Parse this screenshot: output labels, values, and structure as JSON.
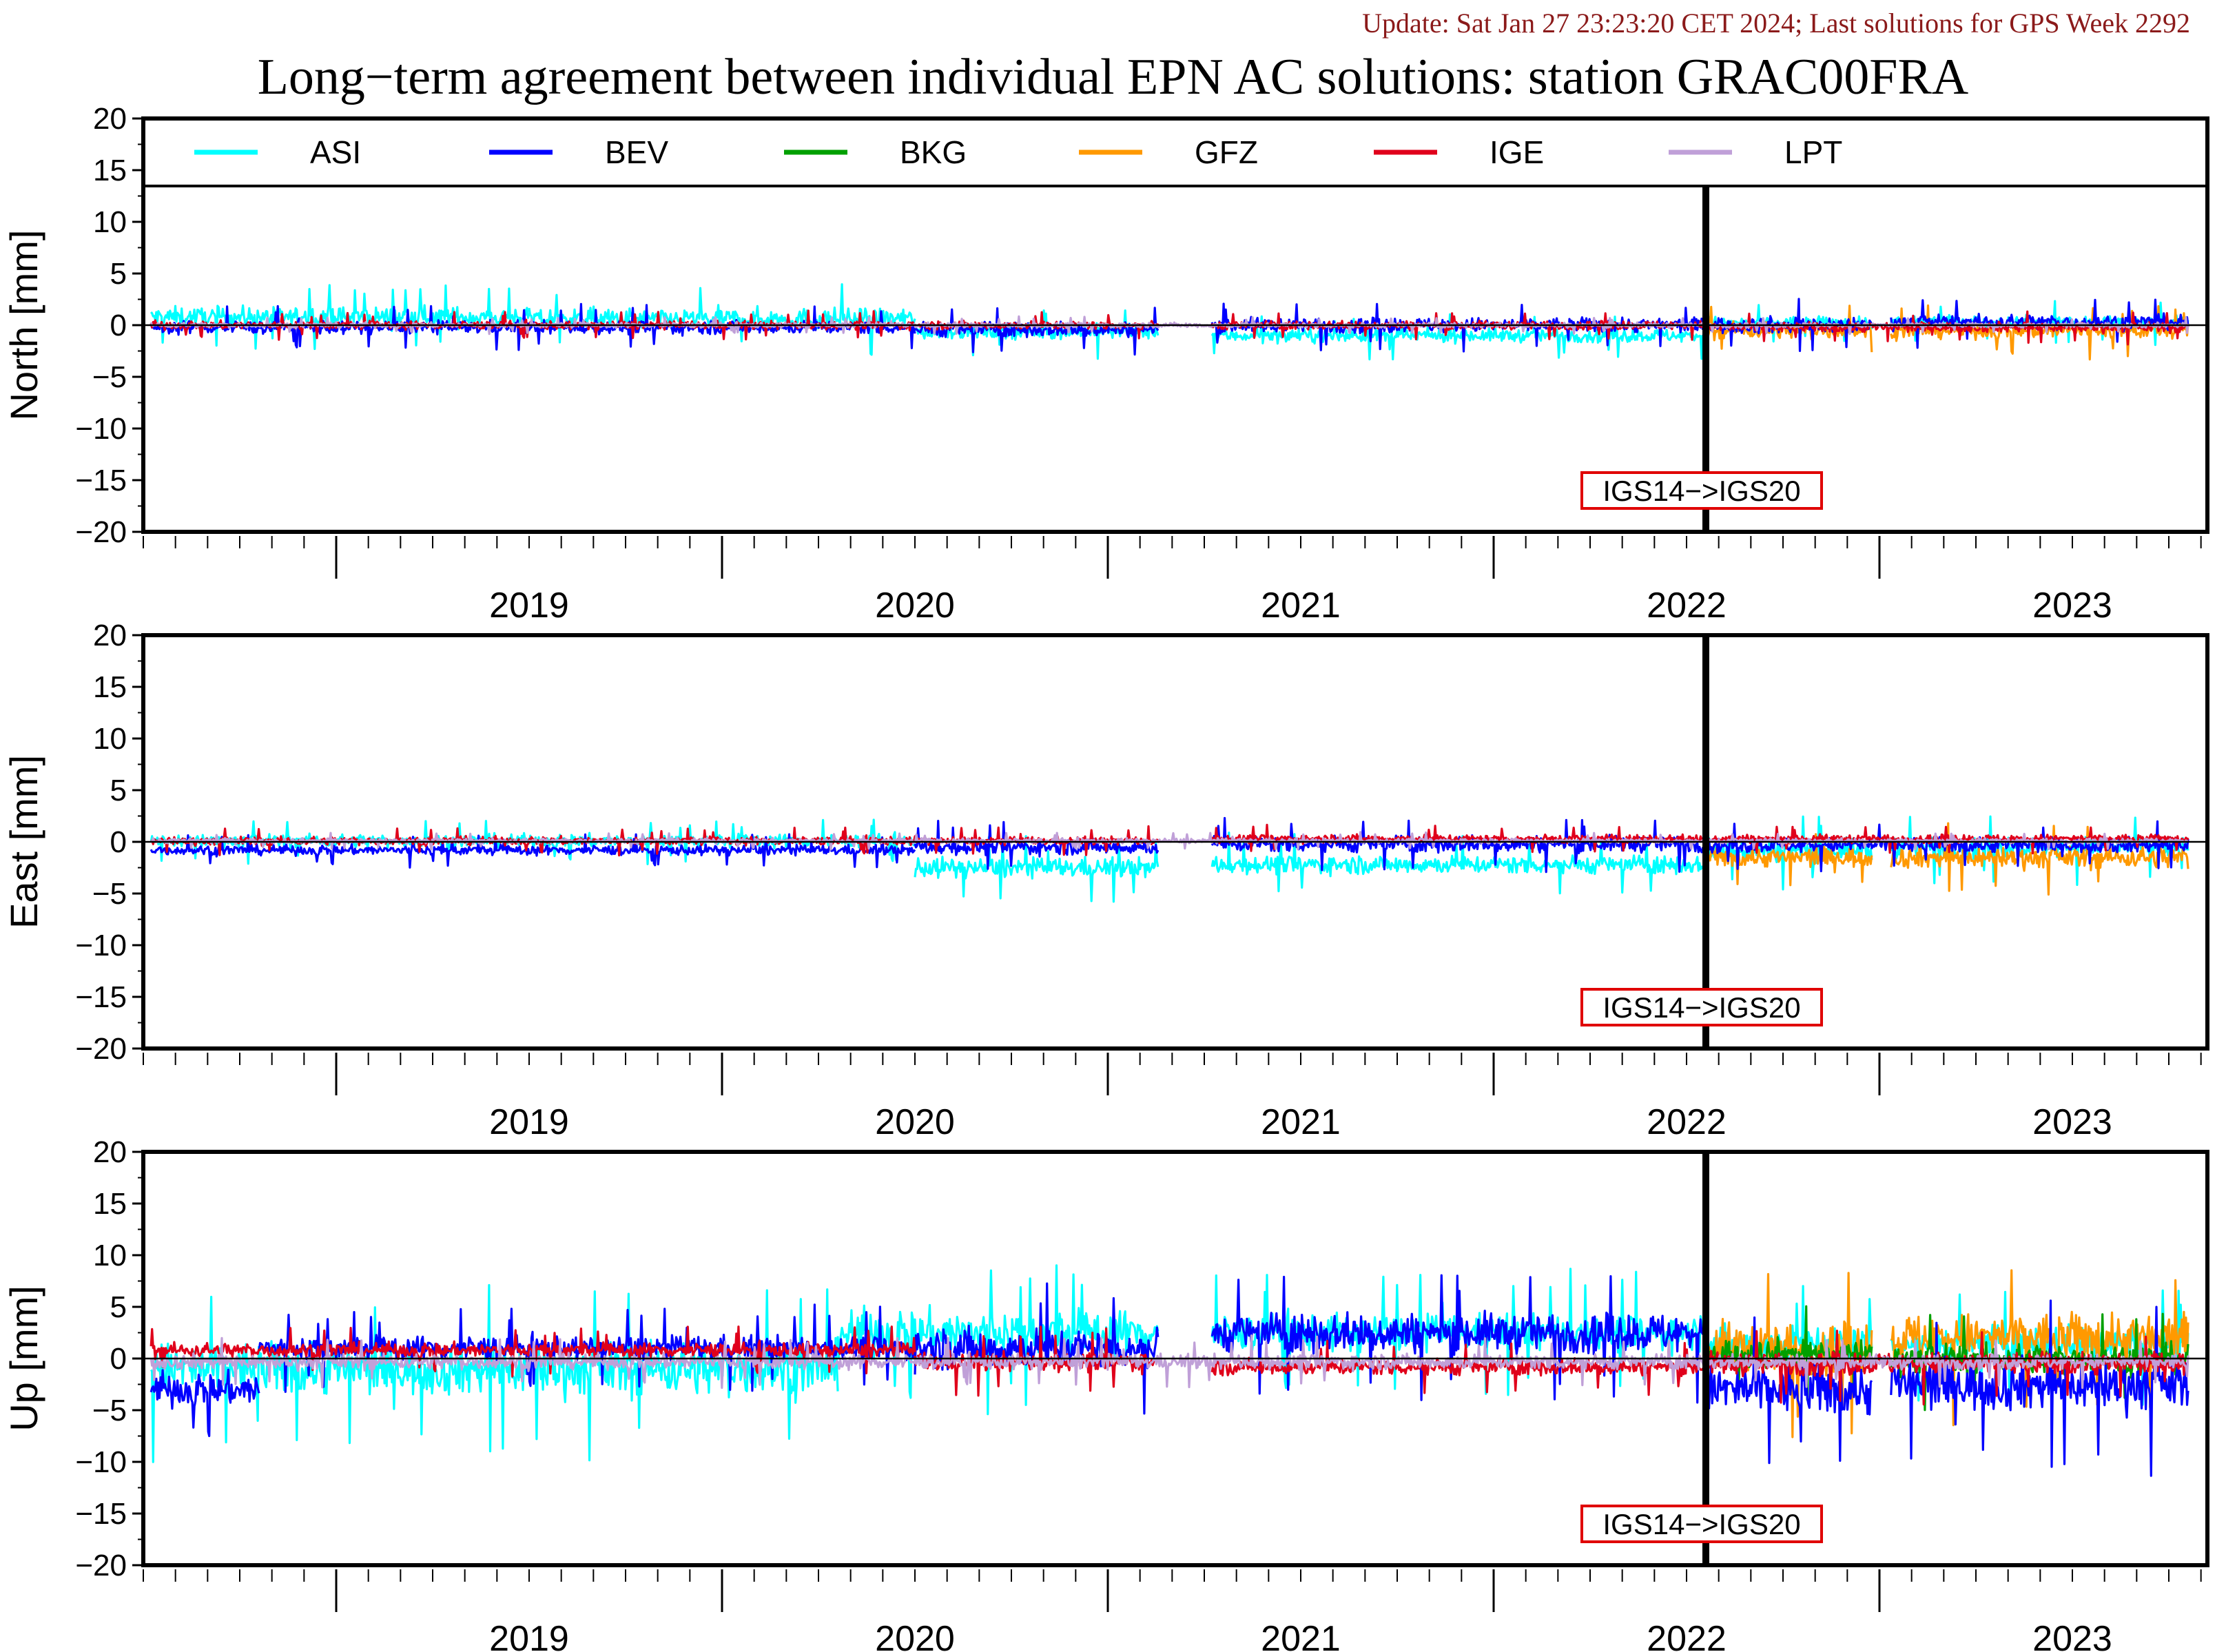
{
  "update_text": "Update: Sat Jan 27 23:23:20 CET 2024; Last solutions for GPS Week 2292",
  "title": "Long−term agreement between individual EPN AC solutions: station GRAC00FRA",
  "colors": {
    "ASI": "#00ffff",
    "BEV": "#0000ff",
    "BKG": "#00a000",
    "GFZ": "#ff9900",
    "IGE": "#e0001b",
    "LPT": "#c0a0d8",
    "annotation_border": "#e00000",
    "update_text": "#8b1a1a"
  },
  "chart_data": [
    {
      "type": "line",
      "panel": "north",
      "ylabel": "North [mm]",
      "ylim": [
        -20,
        20
      ],
      "yticks": [
        "20",
        "15",
        "10",
        "5",
        "0",
        "−5",
        "−10",
        "−15",
        "−20"
      ],
      "xlim": [
        2018.5,
        2023.85
      ],
      "year_labels": [
        "2019",
        "2020",
        "2021",
        "2022",
        "2023"
      ],
      "legend": {
        "placement": "top",
        "entries": [
          "ASI",
          "BEV",
          "BKG",
          "GFZ",
          "IGE",
          "LPT"
        ]
      },
      "annotation": {
        "text": "IGS14−>IGS20",
        "x": 2022.55
      },
      "series": [
        {
          "name": "ASI",
          "segments": [
            {
              "start": 2018.52,
              "end": 2019.5,
              "mean": 0.8,
              "noise": 1.2
            },
            {
              "start": 2019.5,
              "end": 2020.5,
              "mean": 0.6,
              "noise": 1.3
            },
            {
              "start": 2020.5,
              "end": 2021.13,
              "mean": -0.6,
              "noise": 0.9
            },
            {
              "start": 2021.27,
              "end": 2022.55,
              "mean": -1.0,
              "noise": 0.8
            },
            {
              "start": 2022.55,
              "end": 2022.98,
              "mean": 0.2,
              "noise": 0.8
            },
            {
              "start": 2023.03,
              "end": 2023.8,
              "mean": 0.3,
              "noise": 0.8
            }
          ]
        },
        {
          "name": "BEV",
          "segments": [
            {
              "start": 2018.52,
              "end": 2020.5,
              "mean": -0.2,
              "noise": 0.8
            },
            {
              "start": 2020.5,
              "end": 2021.13,
              "mean": -0.4,
              "noise": 0.9
            },
            {
              "start": 2021.27,
              "end": 2022.55,
              "mean": 0.0,
              "noise": 0.9
            },
            {
              "start": 2022.55,
              "end": 2022.98,
              "mean": 0.0,
              "noise": 1.0
            },
            {
              "start": 2023.03,
              "end": 2023.8,
              "mean": 0.3,
              "noise": 0.9
            }
          ]
        },
        {
          "name": "IGE",
          "segments": [
            {
              "start": 2018.52,
              "end": 2021.13,
              "mean": 0.0,
              "noise": 0.5
            },
            {
              "start": 2021.27,
              "end": 2022.55,
              "mean": 0.0,
              "noise": 0.5
            },
            {
              "start": 2022.55,
              "end": 2023.8,
              "mean": -0.2,
              "noise": 0.6
            }
          ]
        },
        {
          "name": "GFZ",
          "segments": [
            {
              "start": 2022.55,
              "end": 2022.98,
              "mean": -0.5,
              "noise": 1.0
            },
            {
              "start": 2023.03,
              "end": 2023.8,
              "mean": -0.5,
              "noise": 1.0
            }
          ]
        },
        {
          "name": "LPT",
          "segments": [
            {
              "start": 2018.52,
              "end": 2023.8,
              "mean": 0.0,
              "noise": 0.3
            }
          ]
        }
      ]
    },
    {
      "type": "line",
      "panel": "east",
      "ylabel": "East [mm]",
      "ylim": [
        -20,
        20
      ],
      "yticks": [
        "20",
        "15",
        "10",
        "5",
        "0",
        "−5",
        "−10",
        "−15",
        "−20"
      ],
      "xlim": [
        2018.5,
        2023.85
      ],
      "year_labels": [
        "2019",
        "2020",
        "2021",
        "2022",
        "2023"
      ],
      "annotation": {
        "text": "IGS14−>IGS20",
        "x": 2022.55
      },
      "series": [
        {
          "name": "ASI",
          "segments": [
            {
              "start": 2018.52,
              "end": 2020.5,
              "mean": 0.1,
              "noise": 0.8
            },
            {
              "start": 2020.5,
              "end": 2021.13,
              "mean": -2.5,
              "noise": 1.2
            },
            {
              "start": 2021.27,
              "end": 2022.55,
              "mean": -2.2,
              "noise": 1.1
            },
            {
              "start": 2022.55,
              "end": 2022.98,
              "mean": -0.8,
              "noise": 1.4
            },
            {
              "start": 2023.03,
              "end": 2023.8,
              "mean": -0.5,
              "noise": 1.3
            }
          ]
        },
        {
          "name": "BEV",
          "segments": [
            {
              "start": 2018.52,
              "end": 2020.5,
              "mean": -0.8,
              "noise": 0.6
            },
            {
              "start": 2020.5,
              "end": 2021.13,
              "mean": -0.5,
              "noise": 0.9
            },
            {
              "start": 2021.27,
              "end": 2022.55,
              "mean": -0.2,
              "noise": 1.0
            },
            {
              "start": 2022.55,
              "end": 2023.8,
              "mean": -0.3,
              "noise": 0.9
            }
          ]
        },
        {
          "name": "IGE",
          "segments": [
            {
              "start": 2018.52,
              "end": 2021.13,
              "mean": 0.1,
              "noise": 0.5
            },
            {
              "start": 2021.27,
              "end": 2023.8,
              "mean": 0.3,
              "noise": 0.5
            }
          ]
        },
        {
          "name": "GFZ",
          "segments": [
            {
              "start": 2022.55,
              "end": 2022.98,
              "mean": -1.5,
              "noise": 1.2
            },
            {
              "start": 2023.03,
              "end": 2023.8,
              "mean": -1.5,
              "noise": 1.3
            }
          ]
        },
        {
          "name": "LPT",
          "segments": [
            {
              "start": 2018.52,
              "end": 2023.8,
              "mean": 0.1,
              "noise": 0.3
            }
          ]
        }
      ]
    },
    {
      "type": "line",
      "panel": "up",
      "ylabel": "Up [mm]",
      "ylim": [
        -20,
        20
      ],
      "yticks": [
        "20",
        "15",
        "10",
        "5",
        "0",
        "−5",
        "−10",
        "−15",
        "−20"
      ],
      "xlim": [
        2018.5,
        2023.85
      ],
      "year_labels": [
        "2019",
        "2020",
        "2021",
        "2022",
        "2023"
      ],
      "annotation": {
        "text": "IGS14−>IGS20",
        "x": 2022.55
      },
      "series": [
        {
          "name": "ASI",
          "segments": [
            {
              "start": 2018.52,
              "end": 2020.3,
              "mean": -1.0,
              "noise": 3.2
            },
            {
              "start": 2020.3,
              "end": 2021.13,
              "mean": 2.5,
              "noise": 2.8
            },
            {
              "start": 2021.27,
              "end": 2022.55,
              "mean": 2.5,
              "noise": 2.2
            },
            {
              "start": 2022.55,
              "end": 2022.98,
              "mean": 1.5,
              "noise": 2.2
            },
            {
              "start": 2023.03,
              "end": 2023.8,
              "mean": 1.5,
              "noise": 2.2
            }
          ]
        },
        {
          "name": "BEV",
          "segments": [
            {
              "start": 2018.52,
              "end": 2018.8,
              "mean": -3.0,
              "noise": 2.0
            },
            {
              "start": 2018.8,
              "end": 2020.5,
              "mean": 1.0,
              "noise": 1.5
            },
            {
              "start": 2020.5,
              "end": 2021.13,
              "mean": 1.0,
              "noise": 2.5
            },
            {
              "start": 2021.27,
              "end": 2022.55,
              "mean": 2.5,
              "noise": 2.4
            },
            {
              "start": 2022.55,
              "end": 2022.98,
              "mean": -3.0,
              "noise": 3.2
            },
            {
              "start": 2023.03,
              "end": 2023.8,
              "mean": -2.5,
              "noise": 3.2
            }
          ]
        },
        {
          "name": "IGE",
          "segments": [
            {
              "start": 2018.52,
              "end": 2020.5,
              "mean": 0.8,
              "noise": 0.9
            },
            {
              "start": 2020.5,
              "end": 2021.13,
              "mean": -0.3,
              "noise": 1.2
            },
            {
              "start": 2021.27,
              "end": 2022.55,
              "mean": -0.8,
              "noise": 1.0
            },
            {
              "start": 2022.55,
              "end": 2023.8,
              "mean": -0.5,
              "noise": 1.4
            }
          ]
        },
        {
          "name": "BKG",
          "segments": [
            {
              "start": 2022.55,
              "end": 2022.98,
              "mean": 0.5,
              "noise": 1.8
            },
            {
              "start": 2023.03,
              "end": 2023.8,
              "mean": 0.0,
              "noise": 1.8
            }
          ]
        },
        {
          "name": "GFZ",
          "segments": [
            {
              "start": 2022.55,
              "end": 2022.98,
              "mean": 1.0,
              "noise": 3.2
            },
            {
              "start": 2023.03,
              "end": 2023.8,
              "mean": 2.0,
              "noise": 3.0
            }
          ]
        },
        {
          "name": "LPT",
          "segments": [
            {
              "start": 2018.52,
              "end": 2023.8,
              "mean": -0.3,
              "noise": 0.9
            }
          ]
        }
      ]
    }
  ]
}
